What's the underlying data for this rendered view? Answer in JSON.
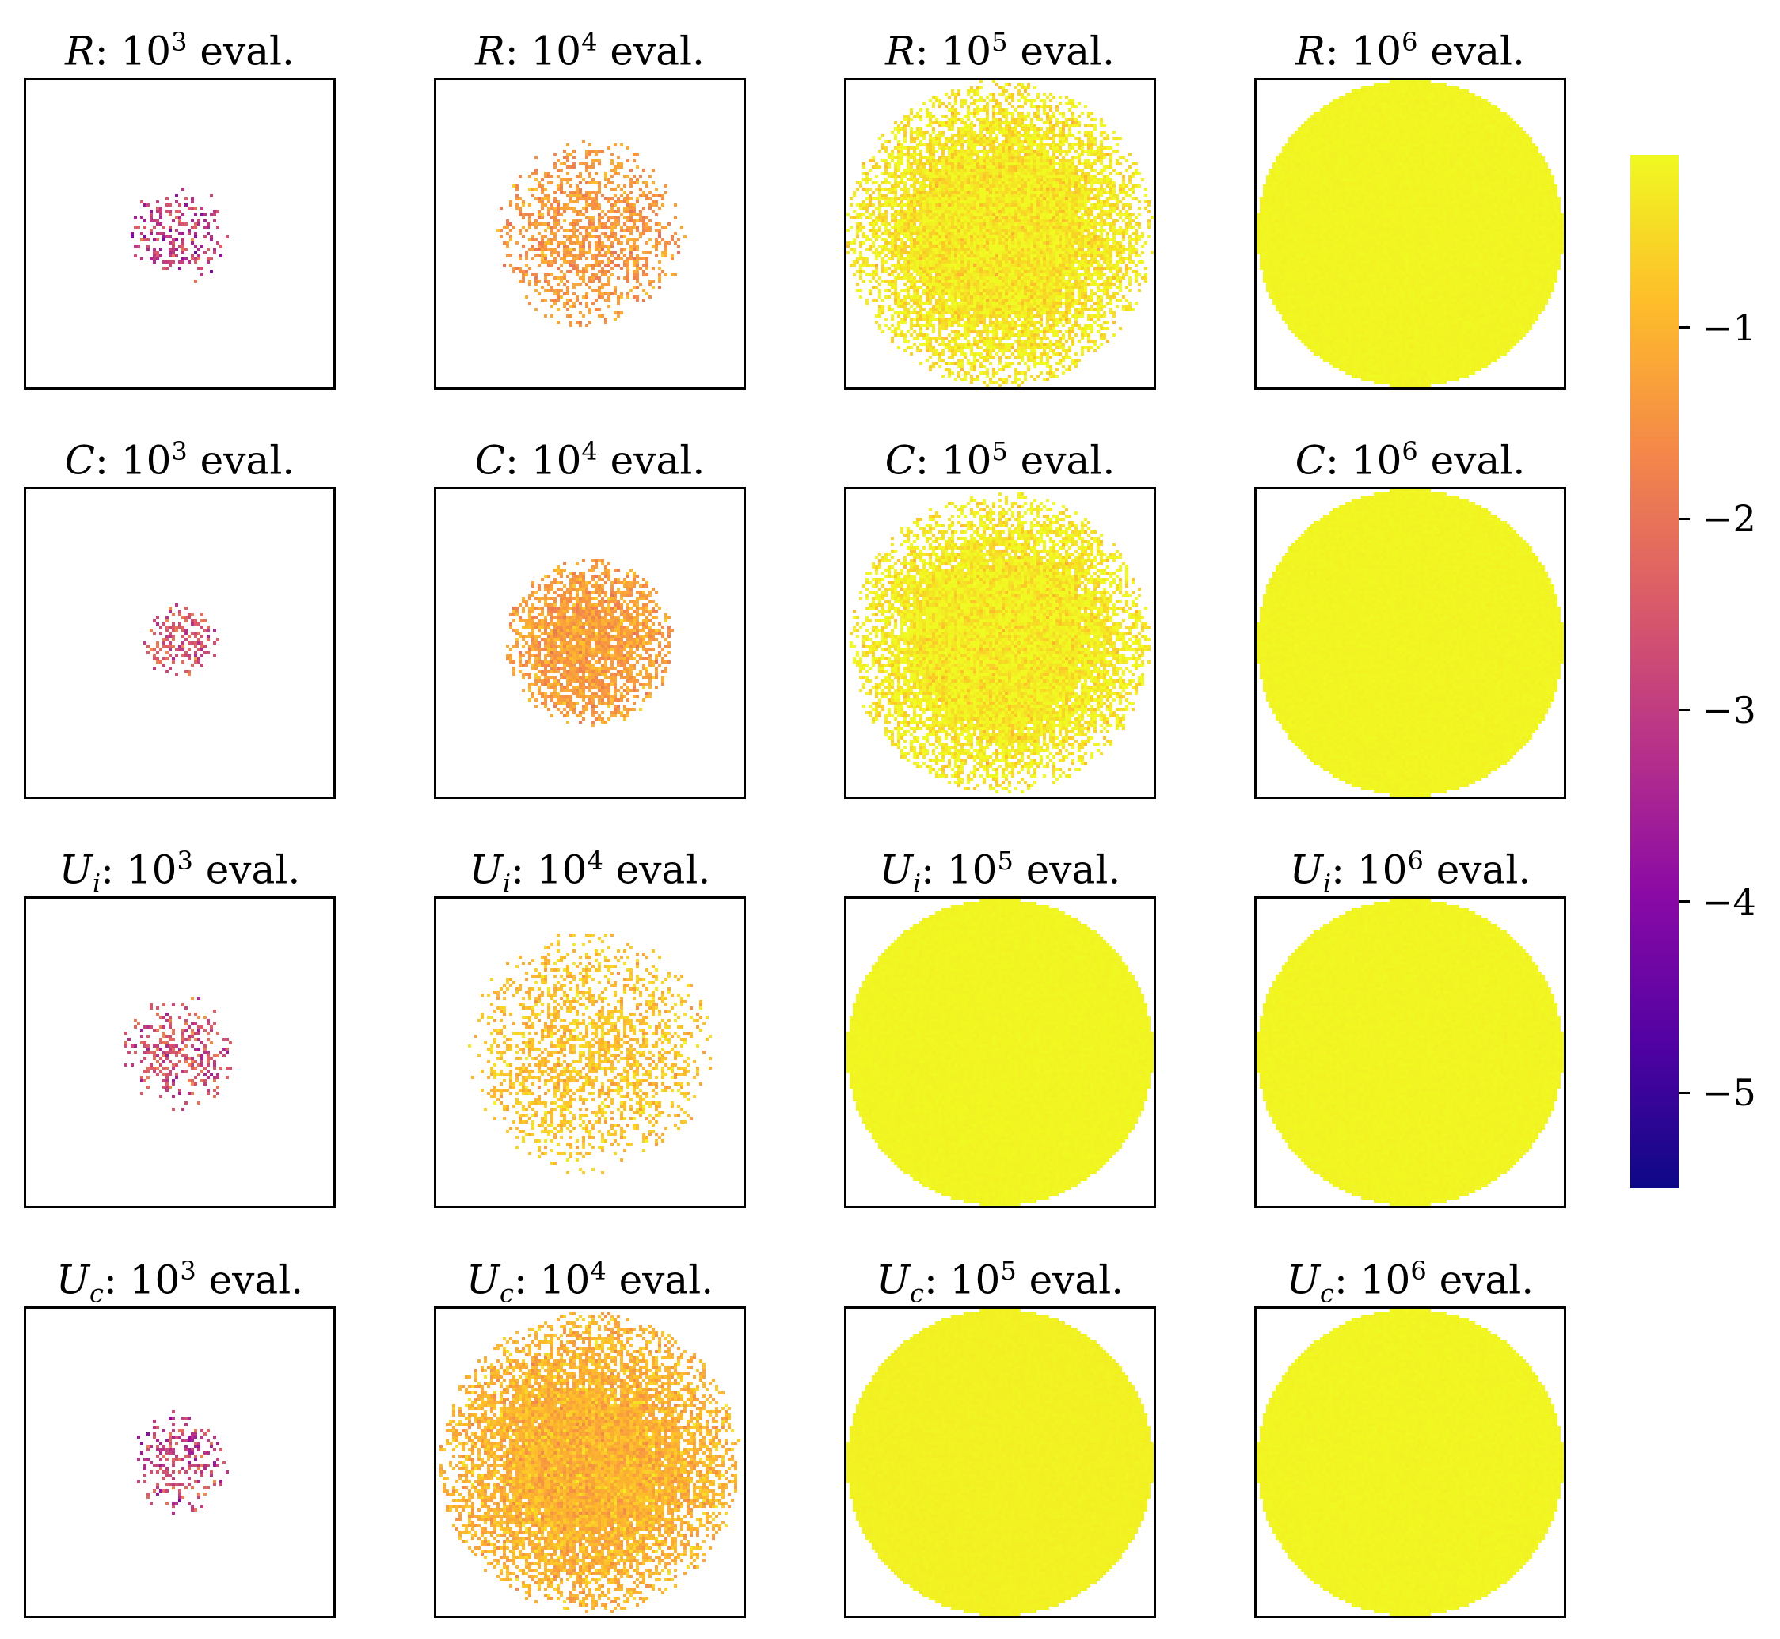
{
  "chart_data": {
    "type": "heatmap",
    "description_rows": [
      "R",
      "C",
      "U_i",
      "U_c"
    ],
    "columns": [
      "10^3",
      "10^4",
      "10^5",
      "10^6"
    ],
    "panels": [
      {
        "method": "R",
        "method_sub": "",
        "evals": "3",
        "title_suffix": "eval.",
        "coverage": 0.35,
        "spread": 0.33,
        "mean": -3.0
      },
      {
        "method": "R",
        "method_sub": "",
        "evals": "4",
        "title_suffix": "eval.",
        "coverage": 0.55,
        "spread": 0.62,
        "mean": -1.4
      },
      {
        "method": "R",
        "method_sub": "",
        "evals": "5",
        "title_suffix": "eval.",
        "coverage": 0.93,
        "spread": 1.0,
        "mean": -0.3
      },
      {
        "method": "R",
        "method_sub": "",
        "evals": "6",
        "title_suffix": "eval.",
        "coverage": 1.0,
        "spread": 1.0,
        "mean": -0.15
      },
      {
        "method": "C",
        "method_sub": "",
        "evals": "3",
        "title_suffix": "eval.",
        "coverage": 0.5,
        "spread": 0.25,
        "mean": -2.5
      },
      {
        "method": "C",
        "method_sub": "",
        "evals": "4",
        "title_suffix": "eval.",
        "coverage": 0.7,
        "spread": 0.55,
        "mean": -1.3
      },
      {
        "method": "C",
        "method_sub": "",
        "evals": "5",
        "title_suffix": "eval.",
        "coverage": 0.97,
        "spread": 0.98,
        "mean": -0.25
      },
      {
        "method": "C",
        "method_sub": "",
        "evals": "6",
        "title_suffix": "eval.",
        "coverage": 1.0,
        "spread": 1.0,
        "mean": -0.15
      },
      {
        "method": "U",
        "method_sub": "i",
        "evals": "3",
        "title_suffix": "eval.",
        "coverage": 0.35,
        "spread": 0.38,
        "mean": -2.6
      },
      {
        "method": "U",
        "method_sub": "i",
        "evals": "4",
        "title_suffix": "eval.",
        "coverage": 0.5,
        "spread": 0.8,
        "mean": -0.8
      },
      {
        "method": "U",
        "method_sub": "i",
        "evals": "5",
        "title_suffix": "eval.",
        "coverage": 1.0,
        "spread": 1.0,
        "mean": -0.15
      },
      {
        "method": "U",
        "method_sub": "i",
        "evals": "6",
        "title_suffix": "eval.",
        "coverage": 1.0,
        "spread": 1.0,
        "mean": -0.15
      },
      {
        "method": "U",
        "method_sub": "c",
        "evals": "3",
        "title_suffix": "eval.",
        "coverage": 0.35,
        "spread": 0.34,
        "mean": -2.8
      },
      {
        "method": "U",
        "method_sub": "c",
        "evals": "4",
        "title_suffix": "eval.",
        "coverage": 0.85,
        "spread": 0.98,
        "mean": -1.0
      },
      {
        "method": "U",
        "method_sub": "c",
        "evals": "5",
        "title_suffix": "eval.",
        "coverage": 1.0,
        "spread": 1.0,
        "mean": -0.2
      },
      {
        "method": "U",
        "method_sub": "c",
        "evals": "6",
        "title_suffix": "eval.",
        "coverage": 1.0,
        "spread": 1.0,
        "mean": -0.15
      }
    ],
    "colorbar": {
      "colormap": "plasma",
      "range": [
        -5.5,
        -0.1
      ],
      "ticks": [
        -1,
        -2,
        -3,
        -4,
        -5
      ],
      "tick_labels": [
        "−1",
        "−2",
        "−3",
        "−4",
        "−5"
      ]
    },
    "colors": {
      "plasma_stops": [
        "#0d0887",
        "#5302a3",
        "#8b0aa5",
        "#b83289",
        "#db5c68",
        "#f48849",
        "#febd2a",
        "#f0f921"
      ]
    }
  }
}
